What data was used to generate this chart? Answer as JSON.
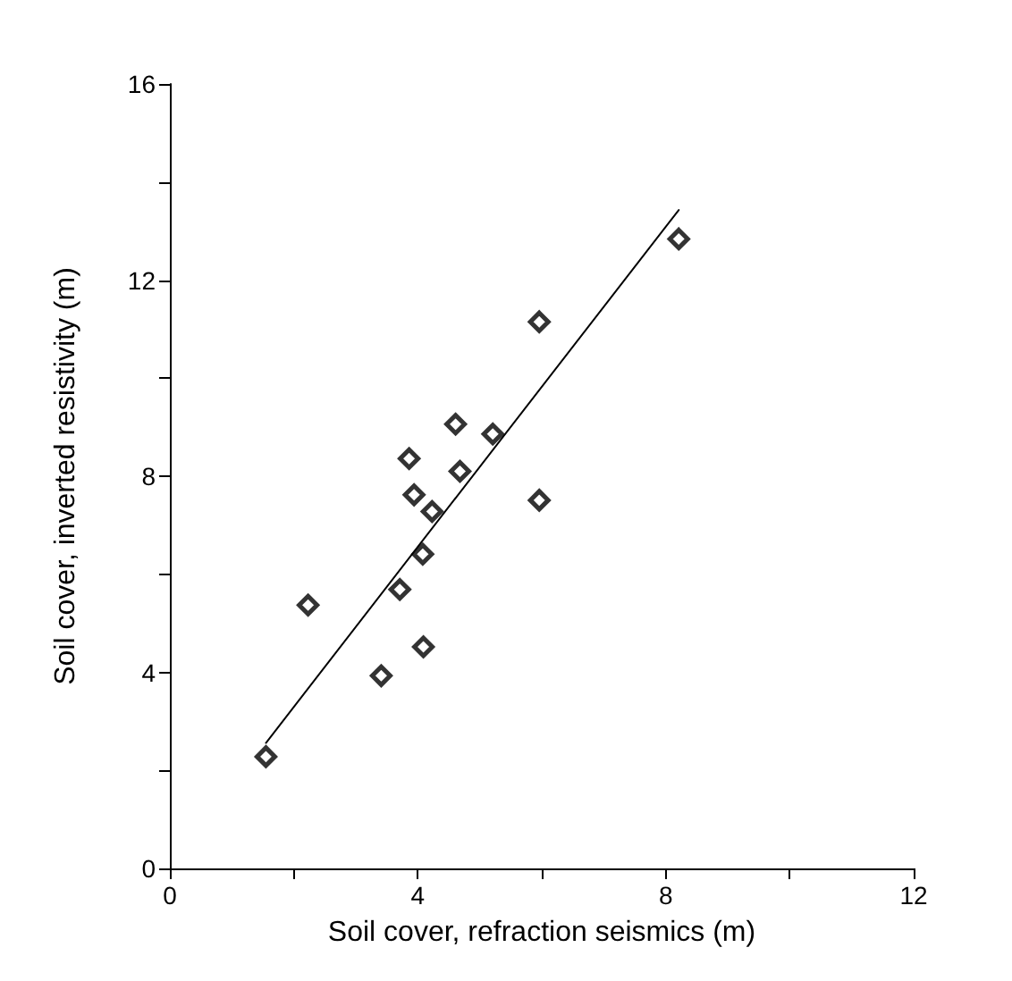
{
  "chart_data": {
    "type": "scatter",
    "xlabel": "Soil cover, refraction seismics (m)",
    "ylabel": "Soil cover, inverted resistivity (m)",
    "xlim": [
      0,
      12
    ],
    "xticks": [
      0,
      {
        "value": 2,
        "label": null
      },
      4,
      {
        "value": 6,
        "label": null
      },
      8,
      {
        "value": 10,
        "label": null
      },
      12
    ],
    "ylim": [
      0,
      16
    ],
    "yticks": [
      0,
      {
        "value": 2,
        "label": null
      },
      4,
      {
        "value": 6,
        "label": null
      },
      8,
      {
        "value": 10,
        "label": null
      },
      12,
      {
        "value": 14,
        "label": null
      },
      16
    ],
    "grid": false,
    "marker": "diamond",
    "series": [
      {
        "color": "#000000",
        "x": [
          1.55,
          2.23,
          3.41,
          3.71,
          4.09,
          4.08,
          4.23,
          5.96,
          3.94,
          4.68,
          3.86,
          5.21,
          4.61,
          5.96,
          8.21
        ],
        "values": [
          2.28,
          5.37,
          3.93,
          5.69,
          4.52,
          6.41,
          7.28,
          7.51,
          7.62,
          8.1,
          8.36,
          8.86,
          9.06,
          11.15,
          12.84
        ]
      },
      {
        "type": "line",
        "color": "#000000",
        "marker": "none",
        "line_style": "solid",
        "x": [
          1.55,
          8.21
        ],
        "values": [
          2.56,
          13.43
        ]
      }
    ]
  }
}
